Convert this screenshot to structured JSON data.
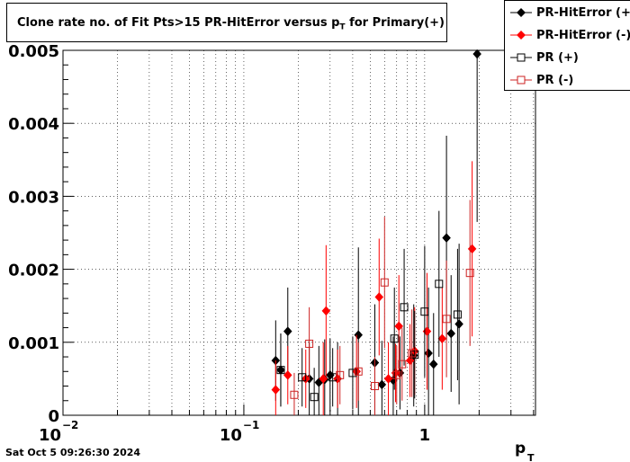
{
  "chart_data": {
    "type": "scatter",
    "title": "Clone rate no. of Fit Pts>15 PR-HitError versus p",
    "title_subscript": "T",
    "title_suffix": " for Primary(+)",
    "xlabel": "p",
    "xlabel_subscript": "T",
    "x_scale": "log",
    "xlim": [
      0.01,
      4.1
    ],
    "ylim": [
      0,
      0.005
    ],
    "grid": true,
    "legend_position": "top-right",
    "y_ticks": [
      "0",
      "0.001",
      "0.002",
      "0.003",
      "0.004",
      "0.005"
    ],
    "y_tick_values": [
      0,
      0.001,
      0.002,
      0.003,
      0.004,
      0.005
    ],
    "x_tick_base": "10",
    "x_ticks": [
      {
        "value": 0.01,
        "base": "10",
        "exp": "−2"
      },
      {
        "value": 0.1,
        "base": "10",
        "exp": "−1"
      },
      {
        "value": 1,
        "base": "1",
        "exp": ""
      }
    ],
    "series": [
      {
        "name": "PR-HitError (+)",
        "color": "#000000",
        "marker": "diamond-filled",
        "x": [
          0.15,
          0.16,
          0.175,
          0.23,
          0.26,
          0.28,
          0.3,
          0.33,
          0.43,
          0.53,
          0.58,
          0.67,
          0.73,
          0.87,
          1.05,
          1.12,
          1.32,
          1.4,
          1.55,
          1.95
        ],
        "y": [
          0.00075,
          0.00062,
          0.00115,
          0.0005,
          0.00045,
          0.00049,
          0.00055,
          0.0005,
          0.0011,
          0.00072,
          0.00042,
          0.00048,
          0.00058,
          0.00082,
          0.00085,
          0.0007,
          0.00243,
          0.00112,
          0.00125,
          0.00495
        ],
        "err": [
          0.00055,
          0.0005,
          0.0006,
          0.0005,
          0.0005,
          0.00055,
          0.0005,
          0.0005,
          0.0012,
          0.0008,
          0.0006,
          0.0006,
          0.0005,
          0.0007,
          0.0009,
          0.0007,
          0.0014,
          0.0008,
          0.0011,
          0.0023
        ]
      },
      {
        "name": "PR-HitError (-)",
        "color": "#ff0000",
        "marker": "diamond-filled",
        "x": [
          0.15,
          0.175,
          0.22,
          0.275,
          0.285,
          0.33,
          0.42,
          0.56,
          0.63,
          0.69,
          0.72,
          0.83,
          0.88,
          1.03,
          1.25,
          1.83
        ],
        "y": [
          0.00035,
          0.00055,
          0.0005,
          0.0005,
          0.00143,
          0.0005,
          0.0006,
          0.00162,
          0.0005,
          0.00058,
          0.00122,
          0.00075,
          0.00088,
          0.00115,
          0.00105,
          0.00228
        ],
        "err": [
          0.0004,
          0.0004,
          0.0004,
          0.0005,
          0.0009,
          0.0004,
          0.0005,
          0.0008,
          0.0005,
          0.0004,
          0.0007,
          0.0005,
          0.0006,
          0.0008,
          0.0007,
          0.0012
        ]
      },
      {
        "name": "PR (+)",
        "color": "#000000",
        "marker": "square-open",
        "x": [
          0.16,
          0.21,
          0.245,
          0.31,
          0.4,
          0.68,
          0.77,
          0.88,
          1.0,
          1.2,
          1.52
        ],
        "y": [
          0.00062,
          0.00052,
          0.00025,
          0.00052,
          0.00058,
          0.00105,
          0.00148,
          0.00083,
          0.00142,
          0.0018,
          0.00138
        ],
        "err": [
          0.0005,
          0.0004,
          0.0004,
          0.0004,
          0.0005,
          0.0007,
          0.0008,
          0.0006,
          0.0009,
          0.001,
          0.0009
        ]
      },
      {
        "name": "PR (-)",
        "color": "#cc2222",
        "marker": "square-open",
        "x": [
          0.19,
          0.23,
          0.34,
          0.43,
          0.53,
          0.6,
          0.7,
          0.75,
          0.85,
          1.32,
          1.78
        ],
        "y": [
          0.00028,
          0.00098,
          0.00055,
          0.0006,
          0.0004,
          0.00182,
          0.00055,
          0.0007,
          0.00085,
          0.00132,
          0.00195
        ],
        "err": [
          0.0003,
          0.0005,
          0.0004,
          0.0004,
          0.0004,
          0.0009,
          0.0004,
          0.0005,
          0.0006,
          0.0008,
          0.001
        ]
      }
    ]
  },
  "timestamp": "Sat Oct  5 09:26:30 2024"
}
